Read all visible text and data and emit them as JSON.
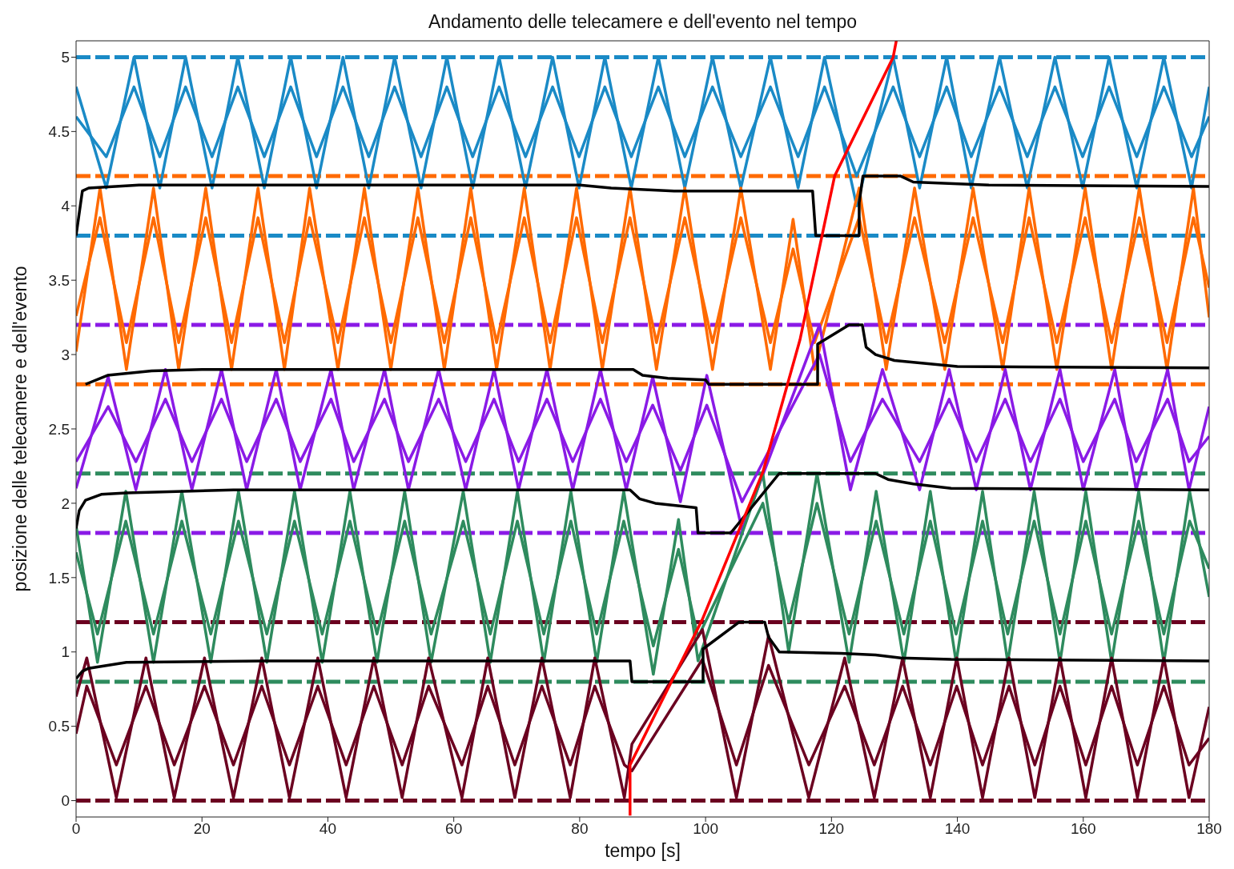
{
  "chart_data": {
    "type": "line",
    "title": "Andamento delle telecamere e dell'evento nel tempo",
    "xlabel": "tempo [s]",
    "ylabel": "posizione delle telecamere e dell'evento",
    "xlim": [
      0,
      180
    ],
    "xticks": [
      0,
      20,
      40,
      60,
      80,
      100,
      120,
      140,
      160,
      180
    ],
    "ylim": [
      -0.11,
      5.11
    ],
    "yticks": [
      0,
      0.5,
      1,
      1.5,
      2,
      2.5,
      3,
      3.5,
      4,
      4.5,
      5
    ],
    "marker": "none",
    "line_style": "solid",
    "series": [
      {
        "color": "#1a8ac6",
        "x": [
          0,
          4.8,
          9.2,
          13.3,
          17.4,
          21.6,
          25.7,
          29.9,
          34.1,
          38.2,
          42.4,
          46.5,
          50.6,
          54.8,
          58.9,
          63.0,
          67.2,
          71.4,
          75.7,
          79.9,
          84.0,
          88.2,
          92.5,
          96.7,
          101.1,
          105.6,
          110.3,
          114.7,
          118.9,
          124.0,
          129.8,
          134.0,
          138.3,
          142.2,
          146.7,
          151.1,
          155.5,
          159.9,
          164.1,
          168.5,
          172.8,
          177.2,
          180
        ],
        "values": [
          4.8,
          4.12,
          5,
          4.12,
          5,
          4.12,
          5,
          4.12,
          5,
          4.12,
          5,
          4.12,
          5,
          4.12,
          5,
          4.12,
          5,
          4.12,
          5,
          4.12,
          5,
          4.12,
          5,
          4.12,
          5,
          4.12,
          5,
          4.12,
          5,
          4.0,
          5,
          4.12,
          5,
          4.12,
          5,
          4.12,
          5,
          4.12,
          5,
          4.12,
          5,
          4.12,
          4.8
        ]
      },
      {
        "color": "#1a8ac6",
        "x": [
          0,
          4.8,
          9.2,
          13.3,
          17.4,
          21.6,
          25.7,
          29.9,
          34.1,
          38.2,
          42.4,
          46.5,
          50.6,
          54.8,
          58.9,
          63.0,
          67.2,
          71.4,
          75.7,
          79.9,
          84.0,
          88.2,
          92.5,
          96.7,
          101.1,
          105.6,
          110.3,
          114.7,
          118.9,
          124.0,
          129.8,
          134.0,
          138.3,
          142.2,
          146.7,
          151.1,
          155.5,
          159.9,
          164.1,
          168.5,
          172.8,
          177.2,
          180
        ],
        "values": [
          4.6,
          4.33,
          4.8,
          4.33,
          4.8,
          4.33,
          4.8,
          4.33,
          4.8,
          4.33,
          4.8,
          4.33,
          4.8,
          4.33,
          4.8,
          4.33,
          4.8,
          4.33,
          4.8,
          4.33,
          4.8,
          4.33,
          4.8,
          4.33,
          4.8,
          4.33,
          4.8,
          4.33,
          4.8,
          4.2,
          4.8,
          4.33,
          4.8,
          4.33,
          4.8,
          4.33,
          4.8,
          4.33,
          4.8,
          4.33,
          4.8,
          4.33,
          4.6
        ]
      },
      {
        "color": "#ff6a00",
        "x": [
          0,
          3.8,
          8.0,
          12.3,
          16.3,
          20.6,
          24.7,
          28.9,
          33.1,
          37.1,
          41.6,
          45.8,
          50.0,
          54.3,
          58.5,
          62.7,
          66.8,
          71.2,
          75.3,
          79.5,
          83.6,
          88.0,
          92.2,
          96.7,
          101.1,
          105.6,
          110.3,
          113.9,
          117.3,
          124.4,
          128.7,
          133.2,
          138.0,
          142.5,
          147.2,
          151.4,
          155.8,
          160.3,
          164.5,
          168.9,
          173.3,
          177.5,
          180
        ],
        "values": [
          3.02,
          4.12,
          2.9,
          4.12,
          2.9,
          4.12,
          2.9,
          4.12,
          2.9,
          4.12,
          2.9,
          4.12,
          2.9,
          4.12,
          2.9,
          4.12,
          2.9,
          4.12,
          2.9,
          4.12,
          2.9,
          4.12,
          2.9,
          4.12,
          2.9,
          4.12,
          2.9,
          3.91,
          2.9,
          4.12,
          2.9,
          4.12,
          2.9,
          4.12,
          2.9,
          4.12,
          2.9,
          4.12,
          2.9,
          4.12,
          2.9,
          4.12,
          3.25
        ]
      },
      {
        "color": "#ff6a00",
        "x": [
          0,
          3.8,
          8.0,
          12.3,
          16.3,
          20.6,
          24.7,
          28.9,
          33.1,
          37.1,
          41.6,
          45.8,
          50.0,
          54.3,
          58.5,
          62.7,
          66.8,
          71.2,
          75.3,
          79.5,
          83.6,
          88.0,
          92.2,
          96.7,
          101.1,
          105.6,
          110.3,
          113.9,
          117.3,
          124.4,
          128.7,
          133.2,
          138.0,
          142.5,
          147.2,
          151.4,
          155.8,
          160.3,
          164.5,
          168.9,
          173.3,
          177.5,
          180
        ],
        "values": [
          3.26,
          3.92,
          3.08,
          3.92,
          3.08,
          3.92,
          3.08,
          3.92,
          3.08,
          3.92,
          3.08,
          3.92,
          3.08,
          3.92,
          3.08,
          3.92,
          3.08,
          3.92,
          3.08,
          3.92,
          3.08,
          3.92,
          3.08,
          3.92,
          3.08,
          3.92,
          3.08,
          3.71,
          3.08,
          3.92,
          3.08,
          3.92,
          3.08,
          3.92,
          3.08,
          3.92,
          3.08,
          3.92,
          3.08,
          3.92,
          3.08,
          3.92,
          3.45
        ]
      },
      {
        "color": "#8a1ae6",
        "x": [
          0,
          5.1,
          9.5,
          14.2,
          18.4,
          23.1,
          27.1,
          31.8,
          35.6,
          40.5,
          44.1,
          49.0,
          52.8,
          57.6,
          61.9,
          66.4,
          70.3,
          74.8,
          78.9,
          83.3,
          87.4,
          91.6,
          96.0,
          100.2,
          105.8,
          118.1,
          123.0,
          128.1,
          134.0,
          138.7,
          143.0,
          147.6,
          151.6,
          156.3,
          160.0,
          165.0,
          168.4,
          173.4,
          176.8,
          180
        ],
        "values": [
          2.1,
          2.85,
          2.09,
          2.9,
          2.09,
          2.9,
          2.09,
          2.9,
          2.09,
          2.9,
          2.09,
          2.9,
          2.09,
          2.9,
          2.09,
          2.9,
          2.09,
          2.9,
          2.09,
          2.9,
          2.09,
          2.85,
          2.01,
          2.86,
          1.82,
          3.2,
          2.09,
          2.9,
          2.09,
          2.9,
          2.09,
          2.9,
          2.09,
          2.9,
          2.09,
          2.9,
          2.09,
          2.9,
          2.09,
          2.65
        ]
      },
      {
        "color": "#8a1ae6",
        "x": [
          0,
          5.1,
          9.5,
          14.2,
          18.4,
          23.1,
          27.1,
          31.8,
          35.6,
          40.5,
          44.1,
          49.0,
          52.8,
          57.6,
          61.9,
          66.4,
          70.3,
          74.8,
          78.9,
          83.3,
          87.4,
          91.6,
          96.0,
          100.2,
          105.8,
          118.1,
          123.0,
          128.1,
          134.0,
          138.7,
          143.0,
          147.6,
          151.6,
          156.3,
          160.0,
          165.0,
          168.4,
          173.4,
          176.8,
          180
        ],
        "values": [
          2.28,
          2.65,
          2.28,
          2.7,
          2.28,
          2.7,
          2.28,
          2.7,
          2.28,
          2.7,
          2.28,
          2.7,
          2.28,
          2.7,
          2.28,
          2.7,
          2.28,
          2.7,
          2.28,
          2.7,
          2.28,
          2.66,
          2.22,
          2.66,
          2.01,
          3.0,
          2.28,
          2.7,
          2.28,
          2.7,
          2.28,
          2.7,
          2.28,
          2.7,
          2.28,
          2.7,
          2.28,
          2.7,
          2.28,
          2.45
        ]
      },
      {
        "color": "#2e8b5e",
        "x": [
          0,
          3.4,
          7.9,
          12.3,
          16.8,
          21.4,
          25.8,
          30.3,
          34.7,
          39.1,
          43.5,
          47.8,
          52.2,
          56.4,
          61.5,
          65.8,
          70.1,
          74.3,
          78.6,
          82.7,
          87.0,
          91.7,
          95.7,
          98.8,
          109.1,
          113.2,
          117.7,
          122.8,
          127.1,
          131.5,
          135.7,
          139.8,
          144.0,
          148.0,
          152.2,
          156.3,
          160.4,
          164.5,
          168.8,
          172.8,
          176.9,
          180
        ],
        "values": [
          1.85,
          0.93,
          2.08,
          0.93,
          2.08,
          0.93,
          2.08,
          0.93,
          2.08,
          0.93,
          2.08,
          0.93,
          2.08,
          0.93,
          2.08,
          0.93,
          2.08,
          0.93,
          2.08,
          0.93,
          2.08,
          0.85,
          1.89,
          0.94,
          2.2,
          1.0,
          2.2,
          0.93,
          2.08,
          0.93,
          2.08,
          0.93,
          2.08,
          0.93,
          2.08,
          0.93,
          2.08,
          0.93,
          2.08,
          0.93,
          2.08,
          1.37
        ]
      },
      {
        "color": "#2e8b5e",
        "x": [
          0,
          3.4,
          7.9,
          12.3,
          16.8,
          21.4,
          25.8,
          30.3,
          34.7,
          39.1,
          43.5,
          47.8,
          52.2,
          56.4,
          61.5,
          65.8,
          70.1,
          74.3,
          78.6,
          82.7,
          87.0,
          91.7,
          95.7,
          98.8,
          109.1,
          113.2,
          117.7,
          122.8,
          127.1,
          131.5,
          135.7,
          139.8,
          144.0,
          148.0,
          152.2,
          156.3,
          160.4,
          164.5,
          168.8,
          172.8,
          176.9,
          180
        ],
        "values": [
          1.67,
          1.12,
          1.88,
          1.12,
          1.88,
          1.12,
          1.88,
          1.12,
          1.88,
          1.12,
          1.88,
          1.12,
          1.88,
          1.12,
          1.88,
          1.12,
          1.88,
          1.12,
          1.88,
          1.12,
          1.88,
          1.04,
          1.69,
          1.1,
          2.0,
          1.2,
          2.0,
          1.12,
          1.88,
          1.12,
          1.88,
          1.12,
          1.88,
          1.12,
          1.88,
          1.12,
          1.88,
          1.12,
          1.88,
          1.12,
          1.88,
          1.56
        ]
      },
      {
        "color": "#6b0020",
        "x": [
          0,
          1.7,
          6.4,
          11.1,
          15.6,
          20.4,
          25.0,
          29.5,
          33.9,
          38.4,
          42.9,
          47.3,
          51.8,
          56.0,
          61.3,
          65.4,
          69.7,
          74.0,
          78.5,
          82.4,
          87.1,
          88.3,
          99.5,
          104.9,
          110.0,
          116.4,
          122.1,
          126.8,
          131.3,
          135.7,
          139.9,
          144.0,
          148.2,
          152.3,
          156.3,
          160.4,
          164.5,
          168.6,
          172.8,
          176.8,
          180
        ],
        "values": [
          0.7,
          0.96,
          0.02,
          0.96,
          0.02,
          0.96,
          0.02,
          0.96,
          0.02,
          0.96,
          0.02,
          0.96,
          0.02,
          0.96,
          0.02,
          0.96,
          0.02,
          0.96,
          0.02,
          0.96,
          0.02,
          0.38,
          1.15,
          0.02,
          1.11,
          0.02,
          0.96,
          0.02,
          0.96,
          0.02,
          0.96,
          0.02,
          0.96,
          0.02,
          0.96,
          0.02,
          0.96,
          0.02,
          0.96,
          0.02,
          0.63
        ]
      },
      {
        "color": "#6b0020",
        "x": [
          0,
          1.7,
          6.4,
          11.1,
          15.6,
          20.4,
          25.0,
          29.5,
          33.9,
          38.4,
          42.9,
          47.3,
          51.8,
          56.0,
          61.3,
          65.4,
          69.7,
          74.0,
          78.5,
          82.4,
          87.1,
          88.3,
          99.5,
          104.9,
          110.0,
          116.4,
          122.1,
          126.8,
          131.3,
          135.7,
          139.9,
          144.0,
          148.2,
          152.3,
          156.3,
          160.4,
          164.5,
          168.6,
          172.8,
          176.8,
          180
        ],
        "values": [
          0.45,
          0.77,
          0.24,
          0.77,
          0.24,
          0.77,
          0.24,
          0.77,
          0.24,
          0.77,
          0.24,
          0.77,
          0.24,
          0.77,
          0.24,
          0.77,
          0.24,
          0.77,
          0.24,
          0.77,
          0.24,
          0.2,
          0.95,
          0.24,
          0.91,
          0.24,
          0.77,
          0.24,
          0.77,
          0.24,
          0.77,
          0.24,
          0.77,
          0.24,
          0.77,
          0.24,
          0.77,
          0.24,
          0.77,
          0.24,
          0.42
        ]
      },
      {
        "color": "#000000",
        "x": [
          0,
          1,
          2,
          10,
          80,
          85,
          95,
          117,
          117.5,
          124.4,
          124.4,
          125,
          131,
          133,
          145,
          180
        ],
        "values": [
          3.8,
          4.1,
          4.12,
          4.14,
          4.14,
          4.12,
          4.1,
          4.1,
          3.8,
          3.8,
          4.02,
          4.2,
          4.2,
          4.16,
          4.14,
          4.13
        ]
      },
      {
        "color": "#000000",
        "x": [
          1.5,
          5,
          12,
          20,
          88.5,
          90,
          94,
          100,
          100.5,
          117.8,
          117.8,
          122.8,
          124.9,
          125.5,
          127,
          130,
          140,
          180
        ],
        "values": [
          2.8,
          2.86,
          2.89,
          2.9,
          2.9,
          2.86,
          2.84,
          2.83,
          2.8,
          2.8,
          3.07,
          3.2,
          3.2,
          3.05,
          3.0,
          2.96,
          2.92,
          2.91
        ]
      },
      {
        "color": "#000000",
        "x": [
          0,
          0.5,
          1.5,
          4,
          8,
          25,
          88,
          89.5,
          92,
          98.5,
          98.8,
          104,
          111.7,
          127,
          129,
          133,
          139,
          180
        ],
        "values": [
          1.83,
          1.95,
          2.02,
          2.06,
          2.07,
          2.09,
          2.09,
          2.03,
          2.0,
          1.97,
          1.8,
          1.8,
          2.2,
          2.2,
          2.16,
          2.13,
          2.1,
          2.09
        ]
      },
      {
        "color": "#000000",
        "x": [
          0,
          1,
          2,
          8,
          30,
          88,
          88.3,
          99.6,
          99.6,
          105.3,
          109.4,
          110,
          111.7,
          121.5,
          127,
          131,
          139,
          180
        ],
        "values": [
          0.82,
          0.87,
          0.89,
          0.93,
          0.94,
          0.94,
          0.8,
          0.8,
          1.02,
          1.2,
          1.2,
          1.1,
          1.0,
          0.99,
          0.98,
          0.96,
          0.95,
          0.94
        ]
      },
      {
        "color": "#ff0000",
        "x": [
          88,
          88,
          99.5,
          109.1,
          115,
          120.5,
          129.8,
          130.3
        ],
        "values": [
          -0.1,
          0.24,
          1.22,
          2.21,
          3.1,
          4.2,
          5.0,
          5.11
        ]
      }
    ],
    "ref_lines": [
      {
        "axis": "y",
        "value": 5,
        "color": "#1a8ac6",
        "line_style": "dashed"
      },
      {
        "axis": "y",
        "value": 3.8,
        "color": "#1a8ac6",
        "line_style": "dashed"
      },
      {
        "axis": "y",
        "value": 4.2,
        "color": "#ff6a00",
        "line_style": "dashed"
      },
      {
        "axis": "y",
        "value": 2.8,
        "color": "#ff6a00",
        "line_style": "dashed"
      },
      {
        "axis": "y",
        "value": 3.2,
        "color": "#8a1ae6",
        "line_style": "dashed"
      },
      {
        "axis": "y",
        "value": 1.8,
        "color": "#8a1ae6",
        "line_style": "dashed"
      },
      {
        "axis": "y",
        "value": 2.2,
        "color": "#2e8b5e",
        "line_style": "dashed"
      },
      {
        "axis": "y",
        "value": 0.8,
        "color": "#2e8b5e",
        "line_style": "dashed"
      },
      {
        "axis": "y",
        "value": 1.2,
        "color": "#6b0020",
        "line_style": "dashed"
      },
      {
        "axis": "y",
        "value": 0,
        "color": "#6b0020",
        "line_style": "dashed"
      }
    ]
  }
}
